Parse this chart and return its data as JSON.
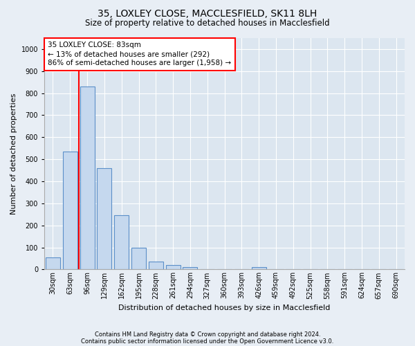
{
  "title1": "35, LOXLEY CLOSE, MACCLESFIELD, SK11 8LH",
  "title2": "Size of property relative to detached houses in Macclesfield",
  "xlabel": "Distribution of detached houses by size in Macclesfield",
  "ylabel": "Number of detached properties",
  "categories": [
    "30sqm",
    "63sqm",
    "96sqm",
    "129sqm",
    "162sqm",
    "195sqm",
    "228sqm",
    "261sqm",
    "294sqm",
    "327sqm",
    "360sqm",
    "393sqm",
    "426sqm",
    "459sqm",
    "492sqm",
    "525sqm",
    "558sqm",
    "591sqm",
    "624sqm",
    "657sqm",
    "690sqm"
  ],
  "values": [
    55,
    535,
    830,
    460,
    245,
    97,
    35,
    20,
    10,
    0,
    0,
    0,
    10,
    0,
    0,
    0,
    0,
    0,
    0,
    0,
    0
  ],
  "bar_color": "#c5d8ee",
  "bar_edge_color": "#5b8fc9",
  "vline_color": "red",
  "annotation_text": "35 LOXLEY CLOSE: 83sqm\n← 13% of detached houses are smaller (292)\n86% of semi-detached houses are larger (1,958) →",
  "annotation_box_color": "white",
  "annotation_box_edge": "red",
  "ylim": [
    0,
    1050
  ],
  "yticks": [
    0,
    100,
    200,
    300,
    400,
    500,
    600,
    700,
    800,
    900,
    1000
  ],
  "footnote1": "Contains HM Land Registry data © Crown copyright and database right 2024.",
  "footnote2": "Contains public sector information licensed under the Open Government Licence v3.0.",
  "bg_color": "#e8eef5",
  "plot_bg_color": "#dce6f0",
  "title1_fontsize": 10,
  "title2_fontsize": 8.5,
  "xlabel_fontsize": 8,
  "ylabel_fontsize": 8,
  "tick_fontsize": 7,
  "footnote_fontsize": 6,
  "annotation_fontsize": 7.5
}
